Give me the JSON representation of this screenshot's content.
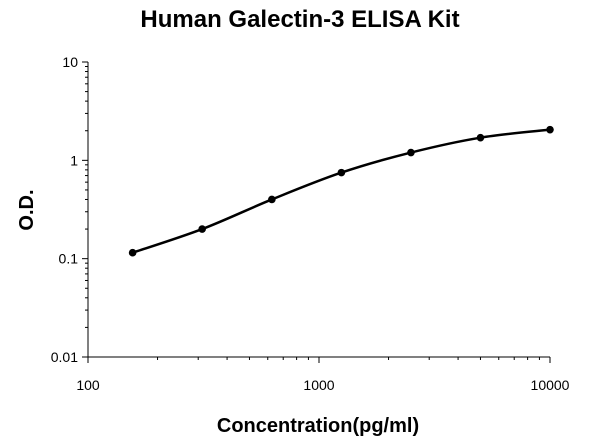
{
  "chart_data": {
    "type": "line",
    "title": "Human Galectin-3 ELISA Kit",
    "xlabel": "Concentration(pg/ml)",
    "ylabel": "O.D.",
    "xscale": "log",
    "yscale": "log",
    "xlim": [
      100,
      10000
    ],
    "ylim": [
      0.01,
      10
    ],
    "x_ticks": [
      "100",
      "1000",
      "10000"
    ],
    "y_ticks": [
      "0.01",
      "0.1",
      "1",
      "10"
    ],
    "grid": false,
    "legend": "none",
    "series": [
      {
        "x": [
          156,
          312,
          625,
          1250,
          2500,
          5000,
          10000
        ],
        "y": [
          0.115,
          0.2,
          0.4,
          0.75,
          1.2,
          1.7,
          2.05
        ]
      }
    ],
    "colors": {
      "line": "#000000",
      "marker": "#000000",
      "axis": "#000000"
    }
  }
}
